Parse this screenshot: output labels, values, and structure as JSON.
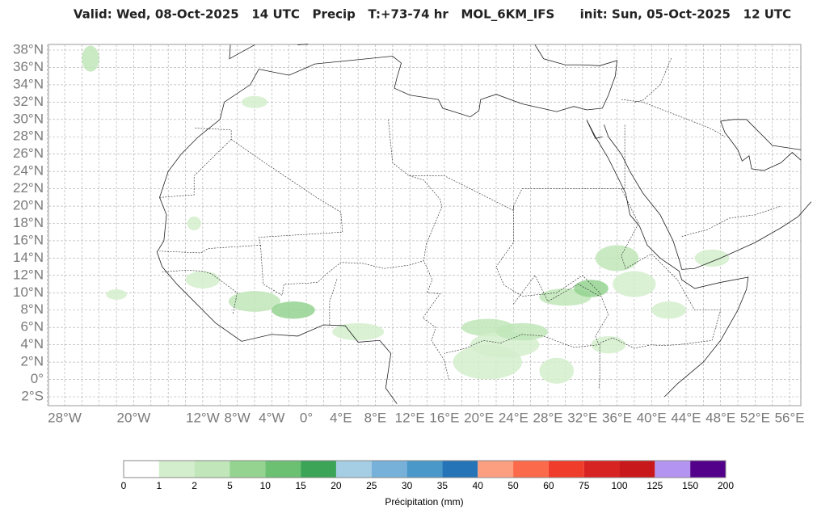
{
  "title": "Valid: Wed, 08-Oct-2025   14 UTC   Precip   T:+73-74 hr   MOL_6KM_IFS      init: Sun, 05-Oct-2025   12 UTC",
  "map": {
    "lat_ticks": [
      {
        "value": 38,
        "label": "38°N"
      },
      {
        "value": 36,
        "label": "36°N"
      },
      {
        "value": 34,
        "label": "34°N"
      },
      {
        "value": 32,
        "label": "32°N"
      },
      {
        "value": 30,
        "label": "30°N"
      },
      {
        "value": 28,
        "label": "28°N"
      },
      {
        "value": 26,
        "label": "26°N"
      },
      {
        "value": 24,
        "label": "24°N"
      },
      {
        "value": 22,
        "label": "22°N"
      },
      {
        "value": 20,
        "label": "20°N"
      },
      {
        "value": 18,
        "label": "18°N"
      },
      {
        "value": 16,
        "label": "16°N"
      },
      {
        "value": 14,
        "label": "14°N"
      },
      {
        "value": 12,
        "label": "12°N"
      },
      {
        "value": 10,
        "label": "10°N"
      },
      {
        "value": 8,
        "label": "8°N"
      },
      {
        "value": 6,
        "label": "6°N"
      },
      {
        "value": 4,
        "label": "4°N"
      },
      {
        "value": 2,
        "label": "2°N"
      },
      {
        "value": 0,
        "label": "0°"
      },
      {
        "value": -2,
        "label": "2°S"
      }
    ],
    "lon_ticks": [
      {
        "value": -28,
        "label": "28°W"
      },
      {
        "value": -20,
        "label": "20°W"
      },
      {
        "value": -12,
        "label": "12°W"
      },
      {
        "value": -8,
        "label": "8°W"
      },
      {
        "value": -4,
        "label": "4°W"
      },
      {
        "value": 0,
        "label": "0°"
      },
      {
        "value": 4,
        "label": "4°E"
      },
      {
        "value": 8,
        "label": "8°E"
      },
      {
        "value": 12,
        "label": "12°E"
      },
      {
        "value": 16,
        "label": "16°E"
      },
      {
        "value": 20,
        "label": "20°E"
      },
      {
        "value": 24,
        "label": "24°E"
      },
      {
        "value": 28,
        "label": "28°E"
      },
      {
        "value": 32,
        "label": "32°E"
      },
      {
        "value": 36,
        "label": "36°E"
      },
      {
        "value": 40,
        "label": "40°E"
      },
      {
        "value": 44,
        "label": "44°E"
      },
      {
        "value": 48,
        "label": "48°E"
      },
      {
        "value": 52,
        "label": "52°E"
      },
      {
        "value": 56,
        "label": "56°E"
      }
    ]
  },
  "colorbar": {
    "levels": [
      0,
      1,
      2,
      5,
      10,
      15,
      20,
      25,
      30,
      35,
      40,
      50,
      60,
      75,
      100,
      125,
      150,
      200
    ],
    "colors": [
      "#ffffff",
      "#d3eecd",
      "#c0e6b9",
      "#94d390",
      "#6bc072",
      "#3ba457",
      "#a5cde3",
      "#77b1da",
      "#4a98c9",
      "#2474b7",
      "#fc9f81",
      "#fb6a4a",
      "#f03c2b",
      "#d72322",
      "#c8181b",
      "#b394f0",
      "#53008b"
    ],
    "label": "Précipitation (mm)"
  }
}
